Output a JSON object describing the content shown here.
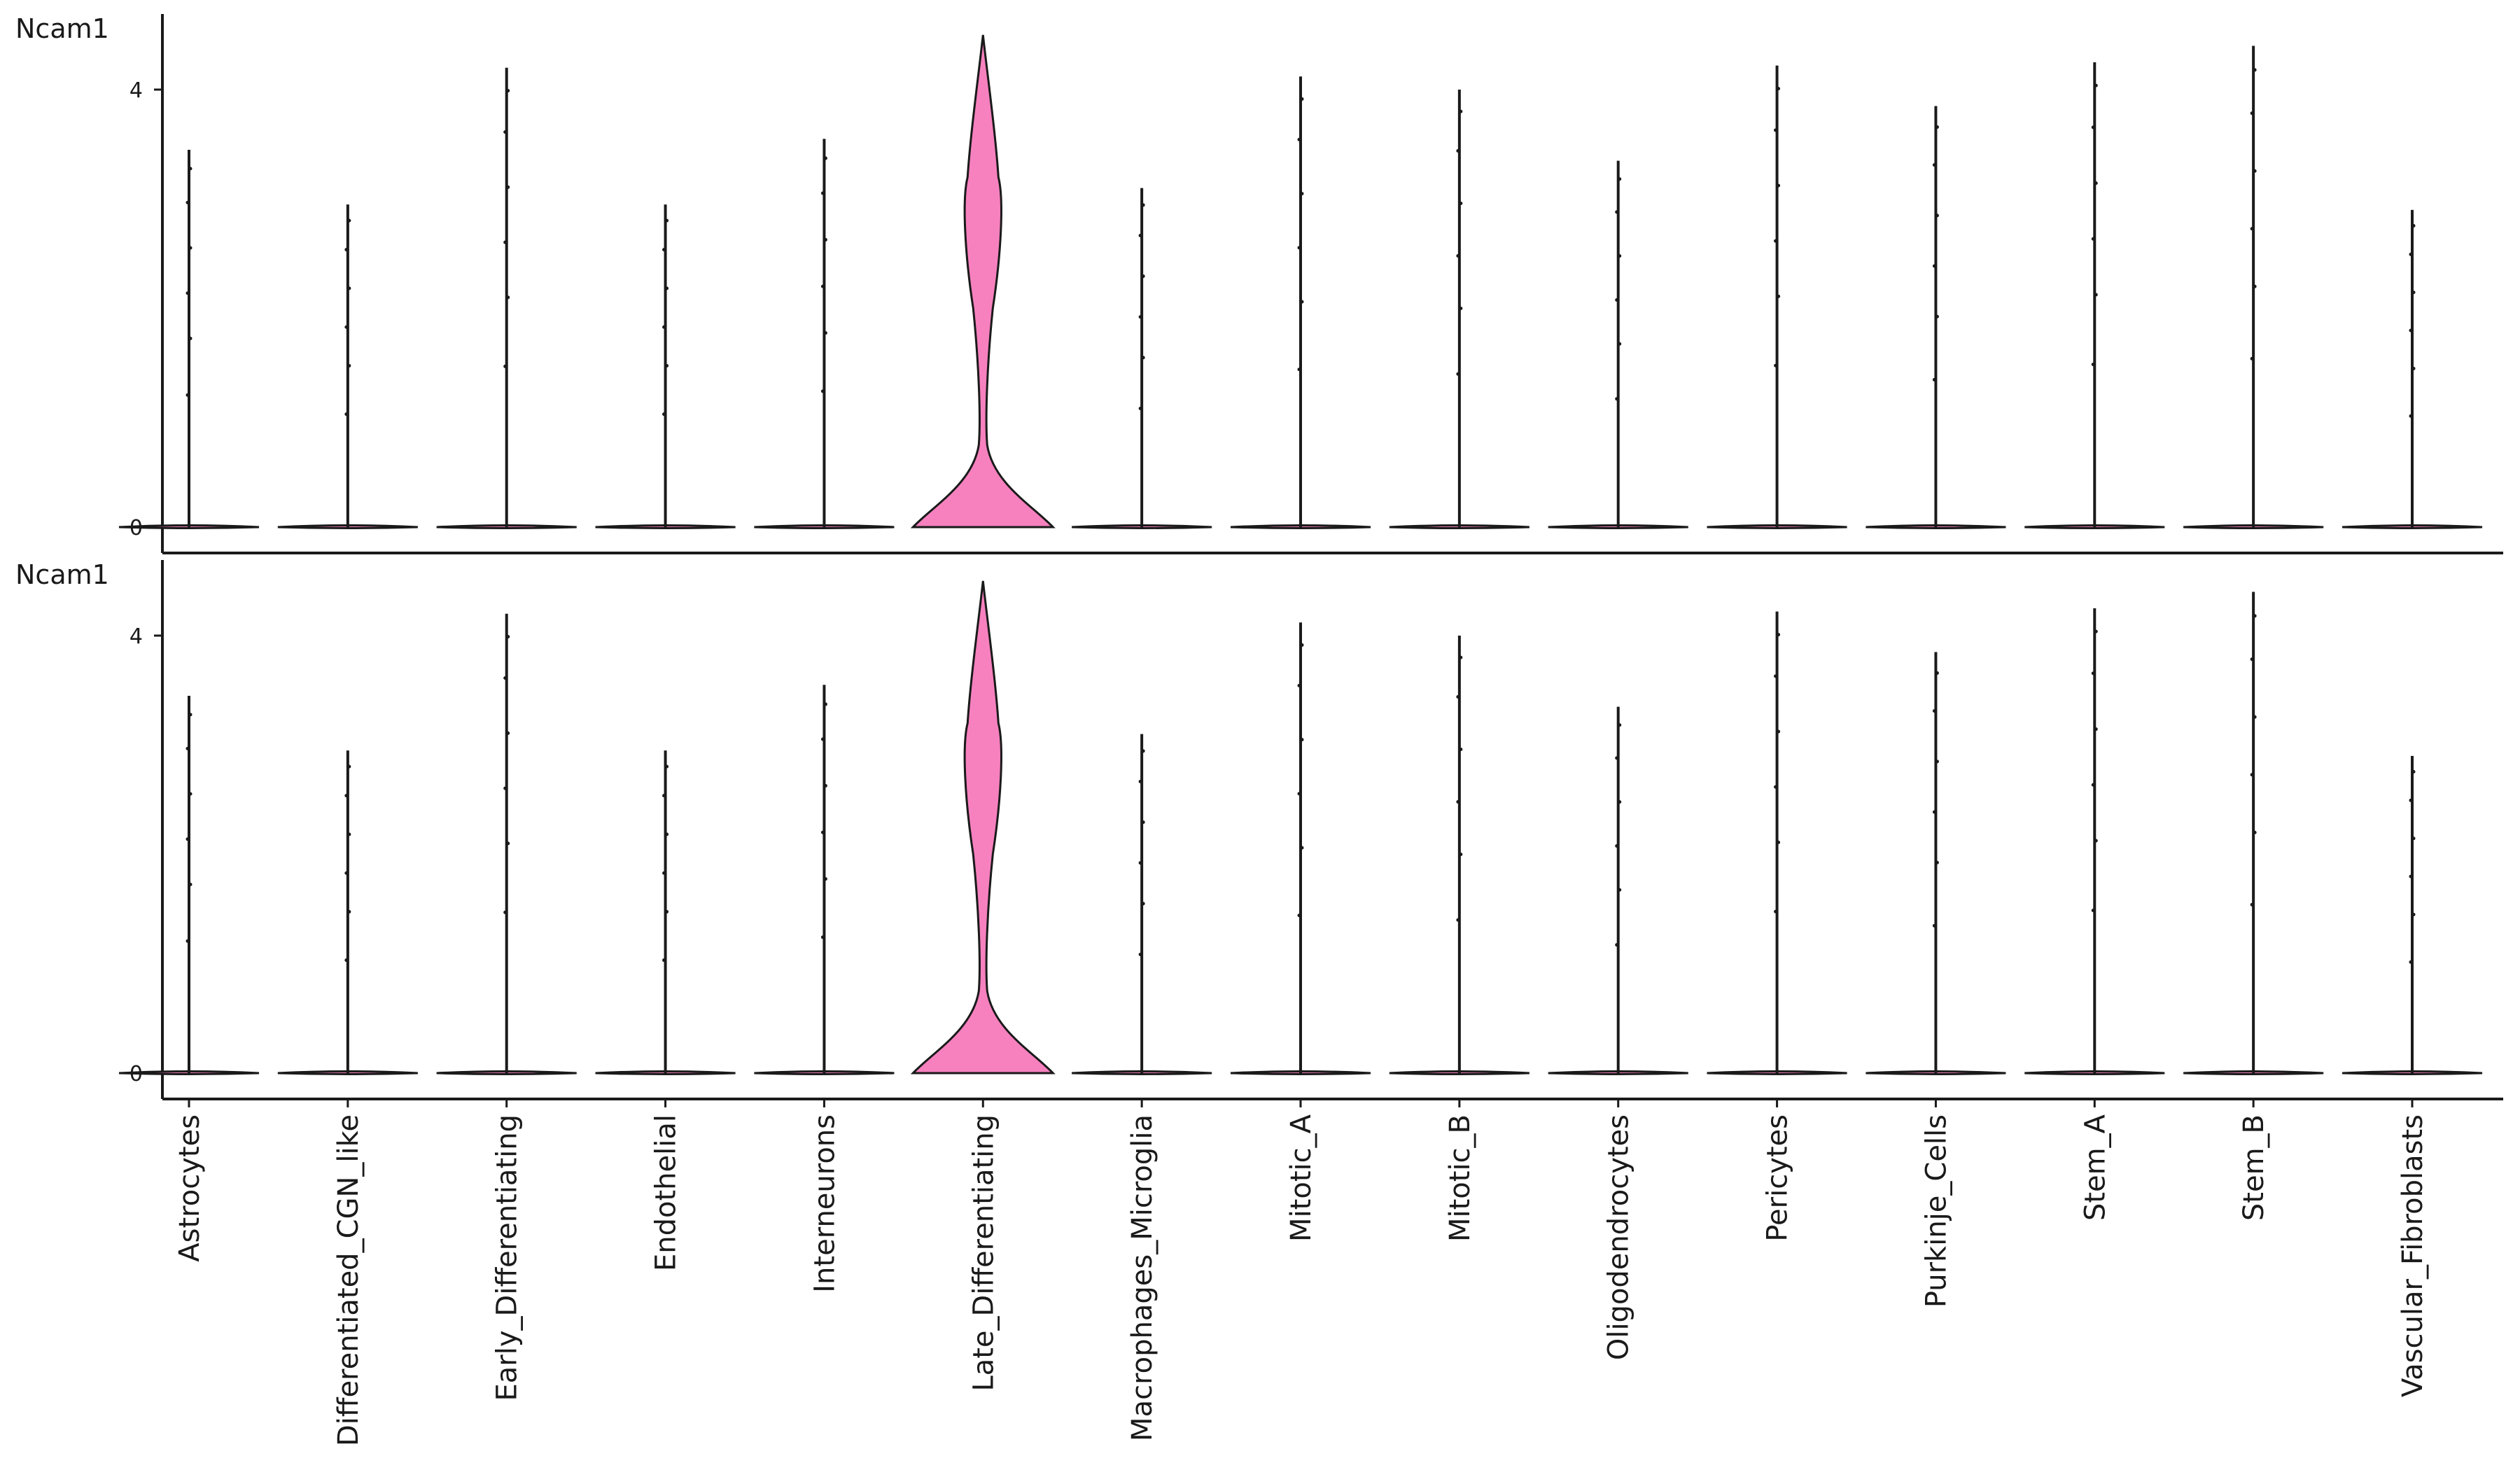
{
  "chart_data": {
    "type": "violin",
    "ylim": [
      0,
      4.7
    ],
    "y_ticks": [
      "0",
      "4"
    ],
    "grid": false,
    "categories": [
      "Astrocytes",
      "Differentiated_CGN_like",
      "Early_Differentiating",
      "Endothelial",
      "Interneurons",
      "Late_Differentiating",
      "Macrophages_Microglia",
      "Mitotic_A",
      "Mitotic_B",
      "Oligodendrocytes",
      "Pericytes",
      "Purkinje_Cells",
      "Stem_A",
      "Stem_B",
      "Vascular_Fibroblasts"
    ],
    "panels": [
      {
        "label": "Ncam1",
        "max_values": [
          3.45,
          2.95,
          4.2,
          2.95,
          3.55,
          4.5,
          3.1,
          4.12,
          4.0,
          3.35,
          4.22,
          3.85,
          4.25,
          4.4,
          2.9
        ],
        "highlight_index": 5,
        "highlight_color": "#f781bf"
      },
      {
        "label": "Ncam1",
        "max_values": [
          3.45,
          2.95,
          4.2,
          2.95,
          3.55,
          4.5,
          3.1,
          4.12,
          4.0,
          3.35,
          4.22,
          3.85,
          4.25,
          4.4,
          2.9
        ],
        "highlight_index": 5,
        "highlight_color": "#f781bf"
      }
    ]
  }
}
